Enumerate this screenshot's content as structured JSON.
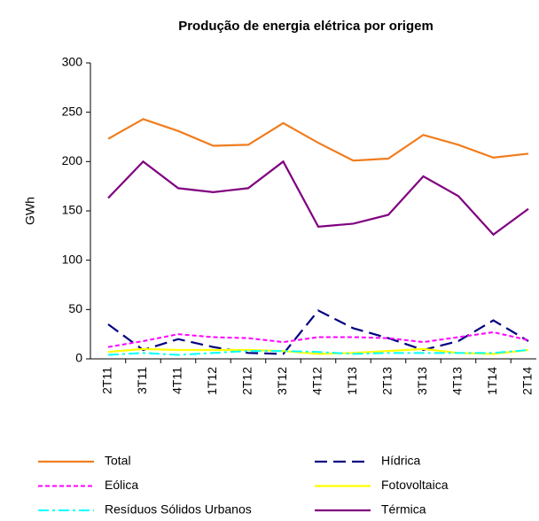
{
  "chart_data": {
    "type": "line",
    "title": "Produção de energia elétrica por origem",
    "y_label": "GWh",
    "categories": [
      "2T11",
      "3T11",
      "4T11",
      "1T12",
      "2T12",
      "3T12",
      "4T12",
      "1T13",
      "2T13",
      "3T13",
      "4T13",
      "1T14",
      "2T14"
    ],
    "ylim": [
      0,
      300
    ],
    "yticks": [
      0,
      50,
      100,
      150,
      200,
      250,
      300
    ],
    "series": [
      {
        "name": "Total",
        "color": "#F07D1E",
        "style": "solid",
        "values": [
          223,
          243,
          231,
          216,
          217,
          239,
          219,
          201,
          203,
          227,
          217,
          204,
          208
        ]
      },
      {
        "name": "Hídrica",
        "color": "#000080",
        "style": "dashed",
        "values": [
          35,
          9,
          20,
          12,
          6,
          5,
          49,
          31,
          21,
          9,
          18,
          39,
          18
        ]
      },
      {
        "name": "Eólica",
        "color": "#FF00FF",
        "style": "dotted",
        "values": [
          12,
          18,
          25,
          22,
          21,
          17,
          22,
          22,
          21,
          17,
          22,
          27,
          19
        ]
      },
      {
        "name": "Fotovoltaica",
        "color": "#FFFF00",
        "style": "solid",
        "values": [
          7,
          10,
          9,
          9,
          9,
          8,
          5,
          6,
          8,
          10,
          6,
          5,
          9
        ]
      },
      {
        "name": "Resíduos Sólidos Urbanos",
        "color": "#00FFFF",
        "style": "dashdot",
        "values": [
          4,
          6,
          4,
          6,
          8,
          8,
          7,
          5,
          6,
          6,
          6,
          6,
          9
        ]
      },
      {
        "name": "Térmica",
        "color": "#800080",
        "style": "solid",
        "values": [
          163,
          200,
          173,
          169,
          173,
          200,
          134,
          137,
          146,
          185,
          165,
          126,
          152
        ]
      }
    ]
  }
}
